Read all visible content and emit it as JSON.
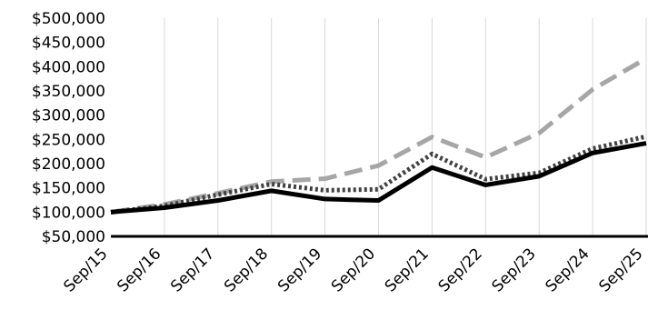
{
  "chart_data": {
    "type": "line",
    "title": "",
    "xlabel": "",
    "ylabel": "",
    "categories": [
      "Sep/15",
      "Sep/16",
      "Sep/17",
      "Sep/18",
      "Sep/19",
      "Sep/20",
      "Sep/21",
      "Sep/22",
      "Sep/23",
      "Sep/24",
      "Sep/25"
    ],
    "ylim": [
      50000,
      500000
    ],
    "yticks": [
      50000,
      100000,
      150000,
      200000,
      250000,
      300000,
      350000,
      400000,
      450000,
      500000
    ],
    "ytick_labels": [
      "$50,000",
      "$100,000",
      "$150,000",
      "$200,000",
      "$250,000",
      "$300,000",
      "$350,000",
      "$400,000",
      "$450,000",
      "$500,000"
    ],
    "grid": "vertical",
    "legend": "none",
    "series": [
      {
        "style": "dashed",
        "color": "#a6a6a6",
        "values": [
          100000,
          116000,
          139000,
          163000,
          169000,
          196000,
          255000,
          213000,
          263000,
          353000,
          417000
        ]
      },
      {
        "style": "dotted",
        "color": "#404040",
        "values": [
          100000,
          113000,
          136000,
          158000,
          145000,
          147000,
          220000,
          168000,
          181000,
          231000,
          256000
        ]
      },
      {
        "style": "solid",
        "color": "#000000",
        "values": [
          100000,
          109000,
          124000,
          144000,
          127000,
          124000,
          192000,
          156000,
          174000,
          222000,
          242000
        ]
      }
    ]
  }
}
